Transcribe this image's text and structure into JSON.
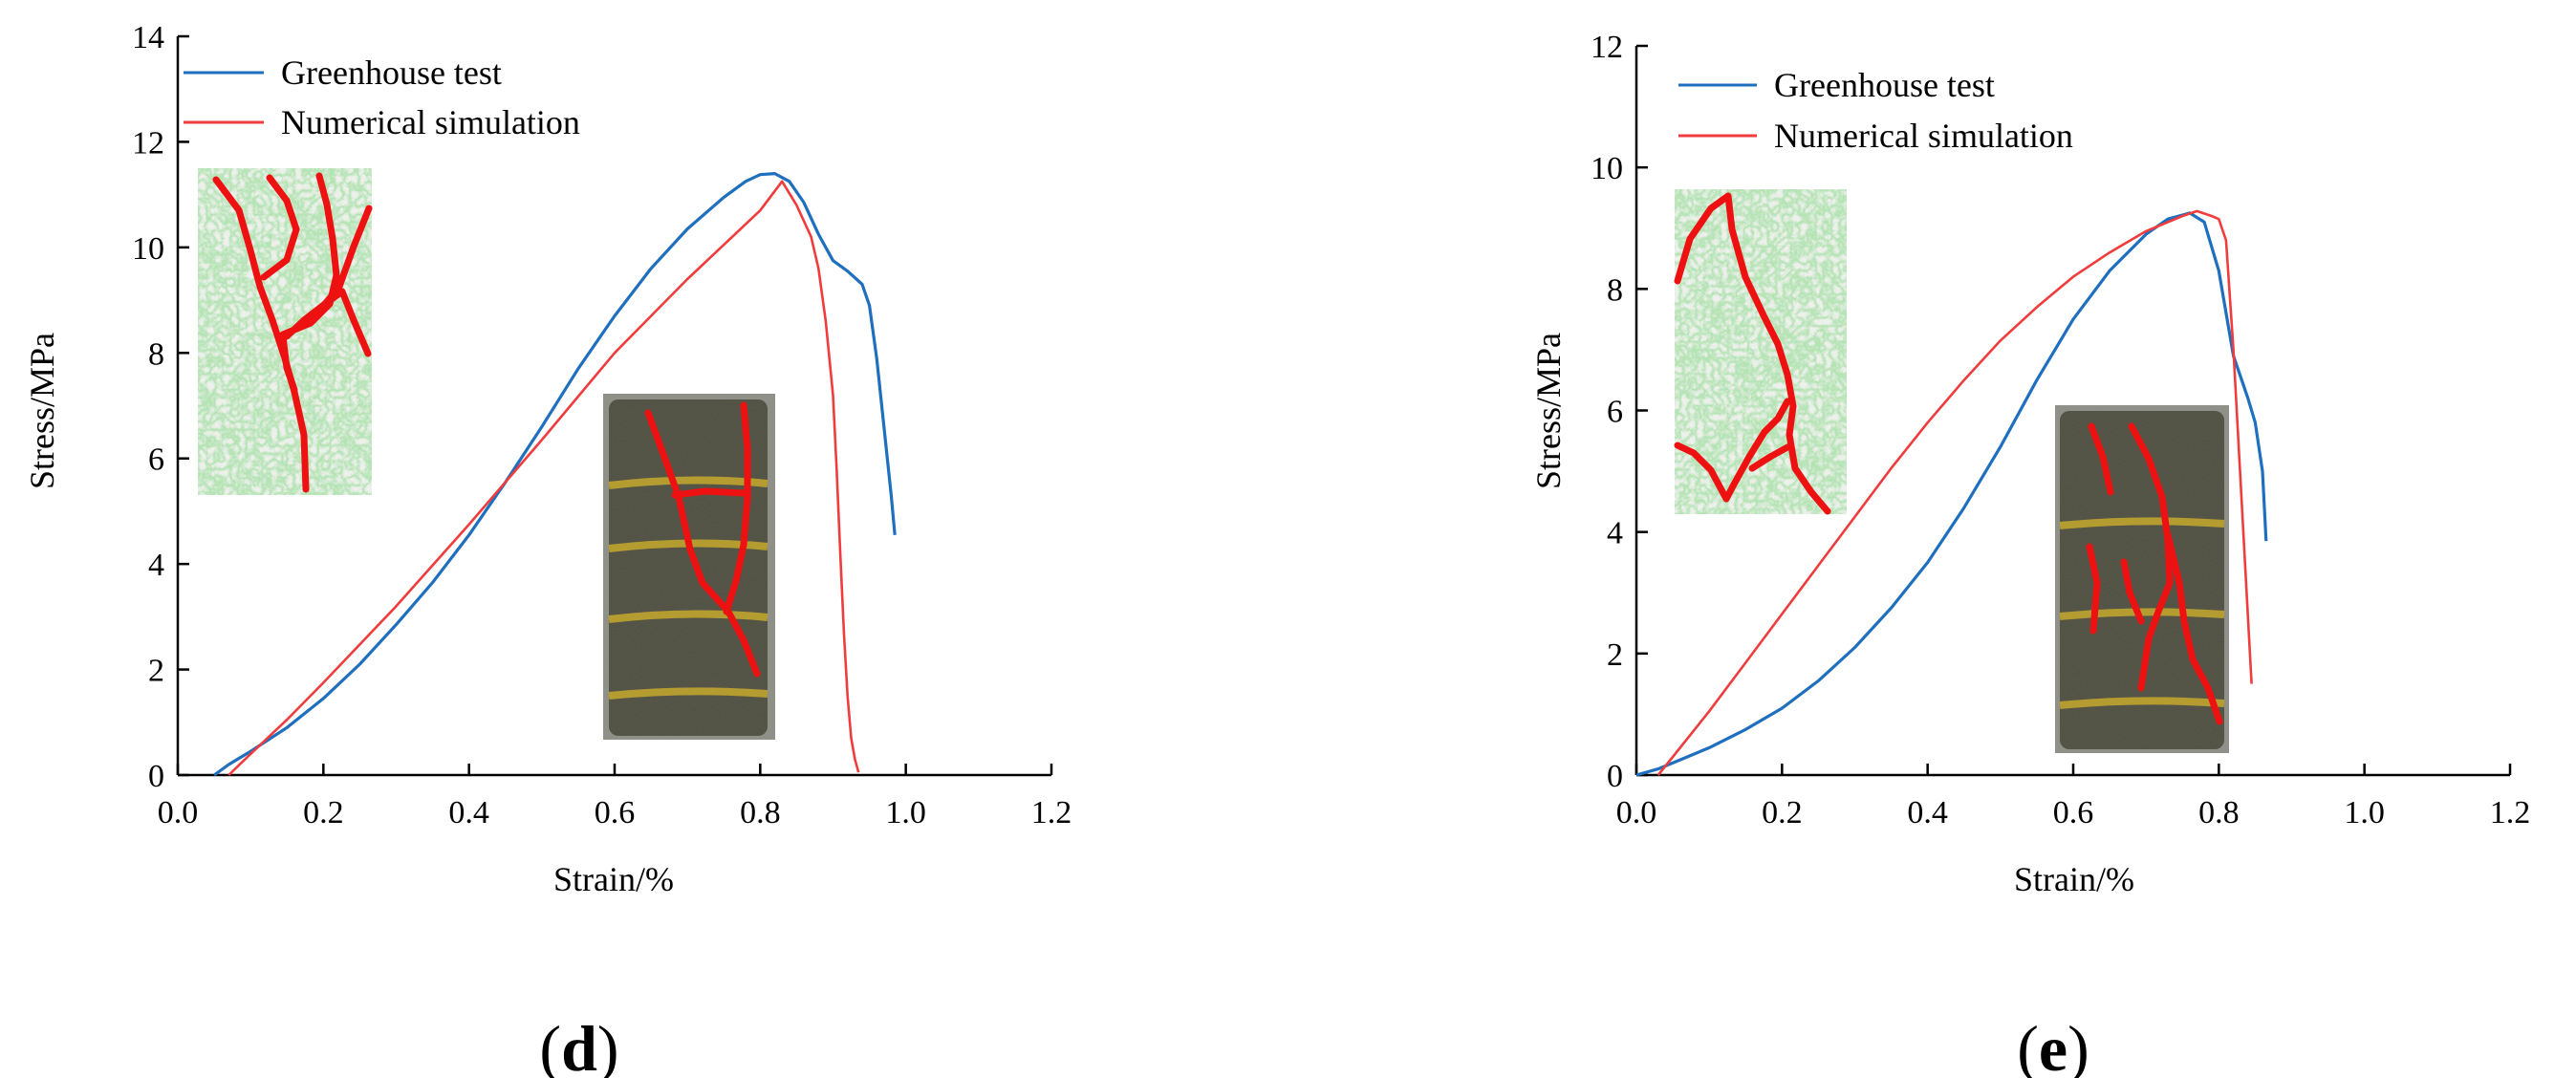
{
  "colors": {
    "greenhouse": "#1f6fbf",
    "simulation": "#f03c3c",
    "crack": "#ee1111",
    "sim_texture_bg": "#eef0ec",
    "sim_texture_green": "#74c474",
    "sample_dark": "#3d3d34",
    "sample_band": "#b49c30"
  },
  "chart_data": [
    {
      "type": "line",
      "panel": "(d)",
      "panel_letter": "d",
      "xlabel": "Strain/%",
      "ylabel": "Stress/MPa",
      "xlim": [
        0.0,
        1.2
      ],
      "ylim": [
        0,
        14
      ],
      "xticks": [
        "0.0",
        "0.2",
        "0.4",
        "0.6",
        "0.8",
        "1.0",
        "1.2"
      ],
      "yticks": [
        "0",
        "2",
        "4",
        "6",
        "8",
        "10",
        "12",
        "14"
      ],
      "legend": [
        "Greenhouse test",
        "Numerical simulation"
      ],
      "series": [
        {
          "name": "Greenhouse test",
          "x": [
            0.05,
            0.07,
            0.1,
            0.15,
            0.2,
            0.25,
            0.3,
            0.35,
            0.4,
            0.45,
            0.5,
            0.55,
            0.6,
            0.65,
            0.7,
            0.75,
            0.78,
            0.8,
            0.82,
            0.84,
            0.86,
            0.88,
            0.9,
            0.92,
            0.94,
            0.95,
            0.96,
            0.97,
            0.98,
            0.985
          ],
          "y": [
            0.0,
            0.2,
            0.45,
            0.9,
            1.45,
            2.1,
            2.85,
            3.65,
            4.55,
            5.55,
            6.6,
            7.7,
            8.7,
            9.6,
            10.35,
            10.95,
            11.25,
            11.38,
            11.4,
            11.25,
            10.85,
            10.25,
            9.75,
            9.55,
            9.3,
            8.9,
            7.9,
            6.6,
            5.3,
            4.55
          ]
        },
        {
          "name": "Numerical simulation",
          "x": [
            0.07,
            0.1,
            0.15,
            0.2,
            0.3,
            0.4,
            0.5,
            0.6,
            0.65,
            0.7,
            0.75,
            0.8,
            0.83,
            0.85,
            0.87,
            0.88,
            0.89,
            0.9,
            0.905,
            0.91,
            0.915,
            0.92,
            0.925,
            0.93,
            0.935
          ],
          "y": [
            0.0,
            0.4,
            1.05,
            1.75,
            3.2,
            4.75,
            6.35,
            8.0,
            8.7,
            9.4,
            10.05,
            10.7,
            11.25,
            10.8,
            10.2,
            9.6,
            8.6,
            7.2,
            5.8,
            4.2,
            2.7,
            1.5,
            0.7,
            0.3,
            0.05
          ]
        }
      ]
    },
    {
      "type": "line",
      "panel": "(e)",
      "panel_letter": "e",
      "xlabel": "Strain/%",
      "ylabel": "Stress/MPa",
      "xlim": [
        0.0,
        1.2
      ],
      "ylim": [
        0,
        12
      ],
      "xticks": [
        "0.0",
        "0.2",
        "0.4",
        "0.6",
        "0.8",
        "1.0",
        "1.2"
      ],
      "yticks": [
        "0",
        "2",
        "4",
        "6",
        "8",
        "10",
        "12"
      ],
      "legend": [
        "Greenhouse test",
        "Numerical simulation"
      ],
      "series": [
        {
          "name": "Greenhouse test",
          "x": [
            0.0,
            0.03,
            0.06,
            0.1,
            0.15,
            0.2,
            0.25,
            0.3,
            0.35,
            0.4,
            0.45,
            0.5,
            0.55,
            0.6,
            0.65,
            0.7,
            0.73,
            0.76,
            0.78,
            0.8,
            0.82,
            0.84,
            0.85,
            0.86,
            0.865
          ],
          "y": [
            0.0,
            0.1,
            0.25,
            0.45,
            0.75,
            1.1,
            1.55,
            2.1,
            2.75,
            3.5,
            4.4,
            5.4,
            6.5,
            7.5,
            8.3,
            8.9,
            9.15,
            9.25,
            9.1,
            8.3,
            6.9,
            6.2,
            5.8,
            5.0,
            3.85
          ]
        },
        {
          "name": "Numerical simulation",
          "x": [
            0.03,
            0.06,
            0.1,
            0.15,
            0.2,
            0.25,
            0.3,
            0.35,
            0.4,
            0.45,
            0.5,
            0.55,
            0.6,
            0.65,
            0.7,
            0.75,
            0.77,
            0.79,
            0.8,
            0.81,
            0.82,
            0.83,
            0.84,
            0.845
          ],
          "y": [
            0.0,
            0.45,
            1.05,
            1.85,
            2.65,
            3.45,
            4.25,
            5.05,
            5.8,
            6.5,
            7.15,
            7.7,
            8.2,
            8.6,
            8.95,
            9.2,
            9.28,
            9.2,
            9.15,
            8.8,
            7.0,
            4.8,
            2.6,
            1.5
          ]
        }
      ]
    }
  ]
}
